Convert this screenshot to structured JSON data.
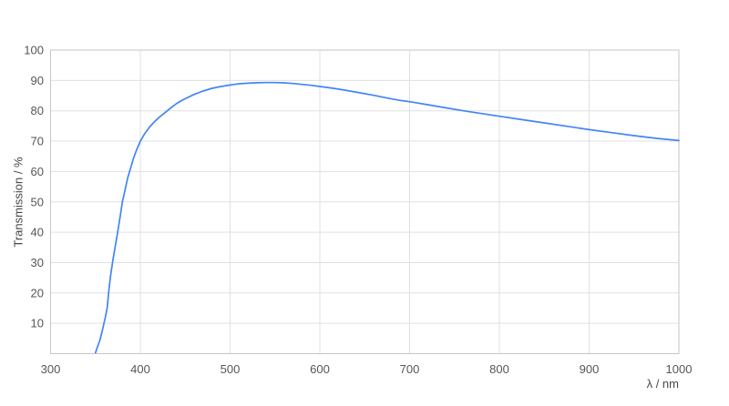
{
  "chart_data": {
    "type": "line",
    "title": "",
    "xlabel": "λ / nm",
    "ylabel": "Transmission / %",
    "xlim": [
      300,
      1000
    ],
    "ylim": [
      0,
      100
    ],
    "x_ticks": [
      300,
      400,
      500,
      600,
      700,
      800,
      900,
      1000
    ],
    "y_ticks": [
      10,
      20,
      30,
      40,
      50,
      60,
      70,
      80,
      90,
      100
    ],
    "grid": true,
    "legend": "none",
    "series": [
      {
        "name": "Transmission",
        "color": "#4285f4",
        "points": [
          [
            350,
            0.3
          ],
          [
            352,
            2
          ],
          [
            355,
            4.5
          ],
          [
            358,
            8
          ],
          [
            361,
            12
          ],
          [
            363,
            15
          ],
          [
            365,
            21
          ],
          [
            367,
            26
          ],
          [
            369,
            30
          ],
          [
            371,
            33.5
          ],
          [
            373,
            37
          ],
          [
            375,
            40.5
          ],
          [
            378,
            46
          ],
          [
            380,
            50
          ],
          [
            383,
            54
          ],
          [
            386,
            58
          ],
          [
            389,
            61
          ],
          [
            392,
            64
          ],
          [
            396,
            67.3
          ],
          [
            400,
            70
          ],
          [
            405,
            72.5
          ],
          [
            410,
            74.5
          ],
          [
            415,
            76.2
          ],
          [
            420,
            77.6
          ],
          [
            425,
            78.8
          ],
          [
            430,
            80
          ],
          [
            435,
            81.2
          ],
          [
            440,
            82.3
          ],
          [
            445,
            83.2
          ],
          [
            450,
            84
          ],
          [
            460,
            85.4
          ],
          [
            470,
            86.5
          ],
          [
            480,
            87.4
          ],
          [
            490,
            88
          ],
          [
            500,
            88.5
          ],
          [
            510,
            88.9
          ],
          [
            520,
            89.1
          ],
          [
            530,
            89.25
          ],
          [
            540,
            89.3
          ],
          [
            550,
            89.3
          ],
          [
            560,
            89.2
          ],
          [
            570,
            89
          ],
          [
            580,
            88.7
          ],
          [
            590,
            88.4
          ],
          [
            600,
            88
          ],
          [
            615,
            87.4
          ],
          [
            630,
            86.7
          ],
          [
            645,
            85.9
          ],
          [
            660,
            85.1
          ],
          [
            675,
            84.2
          ],
          [
            690,
            83.4
          ],
          [
            700,
            83
          ],
          [
            720,
            82
          ],
          [
            740,
            81
          ],
          [
            760,
            80
          ],
          [
            780,
            79.1
          ],
          [
            800,
            78.2
          ],
          [
            825,
            77.1
          ],
          [
            850,
            76
          ],
          [
            875,
            74.9
          ],
          [
            900,
            73.8
          ],
          [
            925,
            72.8
          ],
          [
            950,
            71.8
          ],
          [
            975,
            70.9
          ],
          [
            1000,
            70.2
          ]
        ]
      }
    ],
    "colors": {
      "background": "#ffffff",
      "grid": "#e0e0e0",
      "border": "#c6c6c6",
      "line": "#4285f4",
      "tick_text": "#565656",
      "label_text": "#474747"
    }
  }
}
